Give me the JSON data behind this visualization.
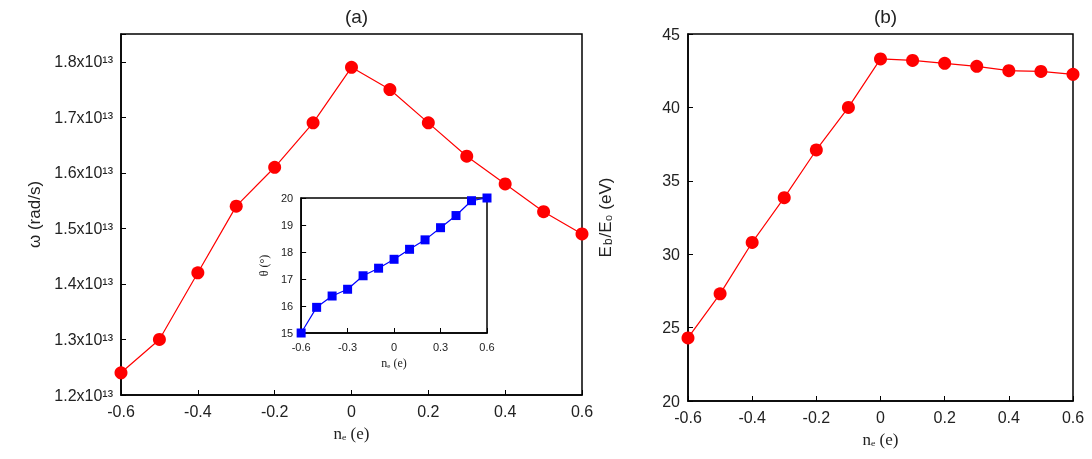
{
  "chart_data": [
    {
      "type": "line",
      "title": "(a)",
      "xlabel": "nₑ (e)",
      "ylabel": "ω (rad/s)",
      "x": [
        -0.6,
        -0.5,
        -0.4,
        -0.3,
        -0.2,
        -0.1,
        0,
        0.1,
        0.2,
        0.3,
        0.4,
        0.5,
        0.6
      ],
      "series": [
        {
          "color": "#ff0000",
          "values": [
            12400000000000.0,
            13000000000000.0,
            14200000000000.0,
            15400000000000.0,
            16100000000000.0,
            16900000000000.0,
            17900000000000.0,
            17500000000000.0,
            16900000000000.0,
            16300000000000.0,
            15800000000000.0,
            15300000000000.0,
            14900000000000.0
          ]
        }
      ],
      "xlim": [
        -0.6,
        0.6
      ],
      "xticks": [
        -0.6,
        -0.4,
        -0.2,
        0,
        0.2,
        0.4,
        0.6
      ],
      "ylim": [
        12000000000000.0,
        18500000000000.0
      ],
      "yticks": [
        {
          "value": 12000000000000.0,
          "label": "1.2x10¹³"
        },
        {
          "value": 13000000000000.0,
          "label": "1.3x10¹³"
        },
        {
          "value": 14000000000000.0,
          "label": "1.4x10¹³"
        },
        {
          "value": 15000000000000.0,
          "label": "1.5x10¹³"
        },
        {
          "value": 16000000000000.0,
          "label": "1.6x10¹³"
        },
        {
          "value": 17000000000000.0,
          "label": "1.7x10¹³"
        },
        {
          "value": 18000000000000.0,
          "label": "1.8x10¹³"
        }
      ],
      "marker": "circle",
      "grid": false
    },
    {
      "type": "line",
      "xlabel": "nₑ (e)",
      "ylabel": "θ (°)",
      "x": [
        -0.6,
        -0.5,
        -0.4,
        -0.3,
        -0.2,
        -0.1,
        0,
        0.1,
        0.2,
        0.3,
        0.4,
        0.5,
        0.6
      ],
      "series": [
        {
          "color": "#0000ff",
          "values": [
            15.0,
            15.95,
            16.37,
            16.62,
            17.12,
            17.4,
            17.73,
            18.1,
            18.45,
            18.9,
            19.35,
            19.9,
            20.0
          ]
        }
      ],
      "xlim": [
        -0.6,
        0.6
      ],
      "xticks": [
        -0.6,
        -0.3,
        0,
        0.3,
        0.6
      ],
      "ylim": [
        15,
        20
      ],
      "yticks": [
        15,
        16,
        17,
        18,
        19,
        20
      ],
      "marker": "square",
      "grid": false
    },
    {
      "type": "line",
      "title": "(b)",
      "xlabel": "nₑ (e)",
      "ylabel": "E$_{b}$/E₀ (eV)",
      "x": [
        -0.6,
        -0.5,
        -0.4,
        -0.3,
        -0.2,
        -0.1,
        0,
        0.1,
        0.2,
        0.3,
        0.4,
        0.5,
        0.6
      ],
      "series": [
        {
          "color": "#ff0000",
          "values": [
            24.3,
            27.3,
            30.8,
            33.85,
            37.1,
            40.0,
            43.3,
            43.2,
            43.0,
            42.8,
            42.5,
            42.45,
            42.25
          ]
        }
      ],
      "xlim": [
        -0.6,
        0.6
      ],
      "xticks": [
        -0.6,
        -0.4,
        -0.2,
        0,
        0.2,
        0.4,
        0.6
      ],
      "ylim": [
        20,
        45
      ],
      "yticks": [
        20,
        25,
        30,
        35,
        40,
        45
      ],
      "marker": "circle",
      "grid": false
    }
  ]
}
